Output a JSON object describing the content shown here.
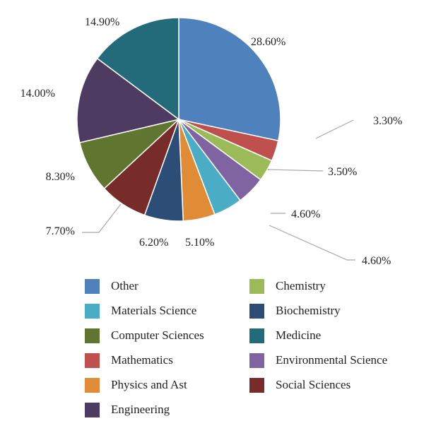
{
  "chart_data": {
    "type": "pie",
    "slices": [
      {
        "label": "Other",
        "value": 28.6,
        "display": "28.60%",
        "color": "#4f81bd"
      },
      {
        "label": "Mathematics",
        "value": 3.3,
        "display": "3.30%",
        "color": "#c0504d"
      },
      {
        "label": "Chemistry",
        "value": 3.5,
        "display": "3.50%",
        "color": "#9bbb59"
      },
      {
        "label": "Environmental Science",
        "value": 4.6,
        "display": "4.60%",
        "color": "#8064a2"
      },
      {
        "label": "Materials Science",
        "value": 4.6,
        "display": "4.60%",
        "color": "#4bacc6"
      },
      {
        "label": "Physics and Ast",
        "value": 5.1,
        "display": "5.10%",
        "color": "#e08b35"
      },
      {
        "label": "Biochemistry",
        "value": 6.2,
        "display": "6.20%",
        "color": "#2c4d75"
      },
      {
        "label": "Social Sciences",
        "value": 7.7,
        "display": "7.70%",
        "color": "#772c2a"
      },
      {
        "label": "Computer Sciences",
        "value": 8.3,
        "display": "8.30%",
        "color": "#5f7530"
      },
      {
        "label": "Engineering",
        "value": 14.0,
        "display": "14.00%",
        "color": "#4d3b62"
      },
      {
        "label": "Medicine",
        "value": 14.9,
        "display": "14.90%",
        "color": "#236b7a"
      }
    ],
    "legend_order": [
      "Other",
      "Chemistry",
      "Materials Science",
      "Biochemistry",
      "Computer Sciences",
      "Medicine",
      "Mathematics",
      "Environmental Science",
      "Physics and Ast",
      "Social Sciences",
      "Engineering"
    ],
    "legend_position": "bottom",
    "start_angle": "12 o'clock",
    "direction": "clockwise"
  }
}
